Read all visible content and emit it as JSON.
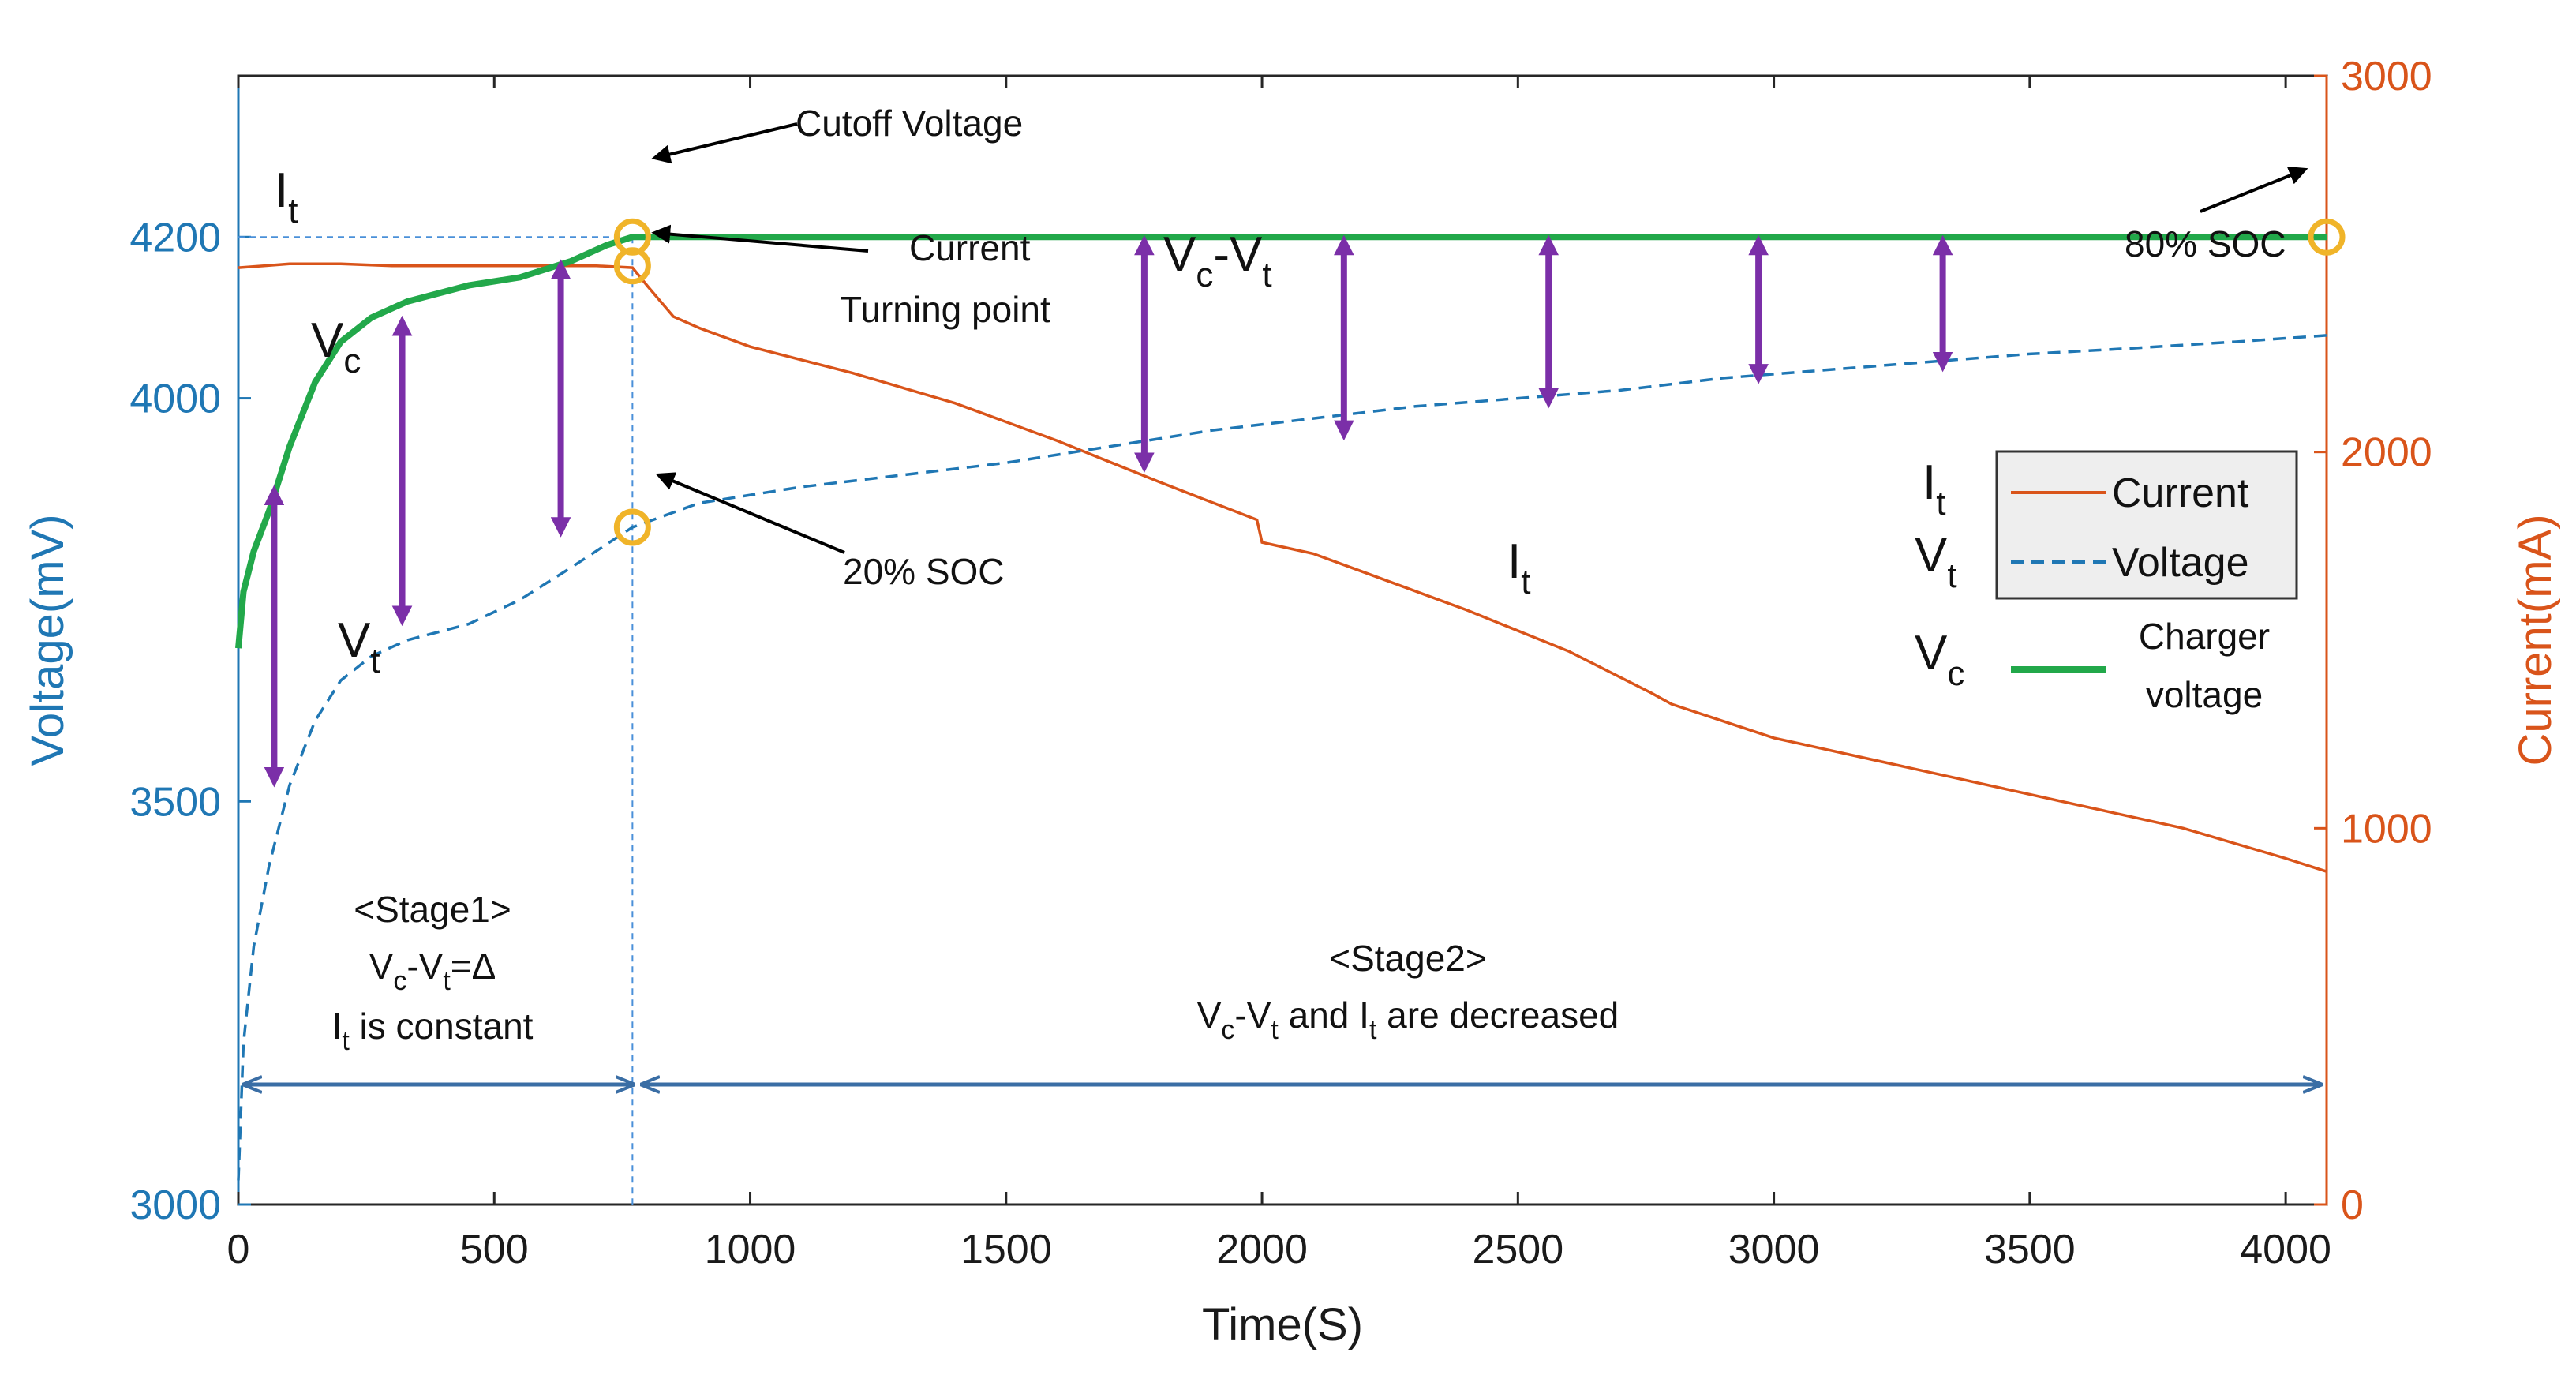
{
  "chart_data": {
    "type": "line",
    "title": "",
    "xlabel": "Time(S)",
    "ylabel_left": "Voltage(mV)",
    "ylabel_right": "Current(mA)",
    "xlim": [
      0,
      4080
    ],
    "ylim_left": [
      3000,
      4400
    ],
    "ylim_right": [
      0,
      3000
    ],
    "xticks": [
      0,
      500,
      1000,
      1500,
      2000,
      2500,
      3000,
      3500,
      4000
    ],
    "xtick_labels": [
      "0",
      "500",
      "1000",
      "1500",
      "2000",
      "2500",
      "3000",
      "3500",
      "4000"
    ],
    "yticks_left": [
      3000,
      3500,
      4000,
      4200
    ],
    "ytick_labels_left": [
      "3000",
      "3500",
      "4000",
      "4200"
    ],
    "yticks_right": [
      0,
      1000,
      2000,
      3000
    ],
    "ytick_labels_right": [
      "0",
      "1000",
      "2000",
      "3000"
    ],
    "colors": {
      "current": "#d9541a",
      "voltage": "#1f77b4",
      "charger": "#22a84a",
      "arrow": "#7b2fa8",
      "marker": "#f0b429",
      "stage_arrow": "#3a6ea5"
    },
    "series": [
      {
        "name": "Current",
        "axis": "right",
        "style": "solid",
        "x": [
          0,
          50,
          100,
          200,
          300,
          400,
          500,
          600,
          700,
          770,
          800,
          850,
          900,
          1000,
          1200,
          1400,
          1600,
          1800,
          1990,
          2000,
          2100,
          2200,
          2400,
          2600,
          2760,
          2800,
          3000,
          3200,
          3400,
          3600,
          3800,
          4000,
          4080
        ],
        "values": [
          2490,
          2495,
          2500,
          2500,
          2495,
          2495,
          2495,
          2495,
          2495,
          2490,
          2440,
          2360,
          2330,
          2280,
          2210,
          2130,
          2030,
          1920,
          1820,
          1760,
          1730,
          1680,
          1580,
          1470,
          1360,
          1330,
          1240,
          1180,
          1120,
          1060,
          1000,
          920,
          885
        ]
      },
      {
        "name": "Voltage",
        "axis": "left",
        "style": "dashed",
        "x": [
          0,
          10,
          30,
          60,
          100,
          150,
          200,
          260,
          330,
          450,
          550,
          650,
          770,
          900,
          1100,
          1300,
          1500,
          1700,
          1900,
          2100,
          2300,
          2500,
          2700,
          2900,
          3100,
          3300,
          3500,
          3700,
          3900,
          4080
        ],
        "values": [
          3030,
          3200,
          3320,
          3420,
          3520,
          3600,
          3650,
          3680,
          3700,
          3720,
          3750,
          3790,
          3840,
          3870,
          3890,
          3905,
          3920,
          3940,
          3960,
          3975,
          3990,
          4000,
          4010,
          4025,
          4035,
          4045,
          4055,
          4062,
          4070,
          4078
        ]
      },
      {
        "name": "Charger voltage",
        "axis": "left",
        "style": "solid",
        "x": [
          0,
          10,
          30,
          60,
          100,
          150,
          200,
          260,
          330,
          450,
          550,
          650,
          720,
          770,
          4080
        ],
        "values": [
          3690,
          3760,
          3810,
          3860,
          3940,
          4020,
          4070,
          4100,
          4120,
          4140,
          4150,
          4170,
          4190,
          4200,
          4200
        ]
      }
    ],
    "vc_vt_arrows": [
      {
        "x": 70,
        "top": 3880,
        "bottom": 3530
      },
      {
        "x": 320,
        "top": 4090,
        "bottom": 3730
      },
      {
        "x": 630,
        "top": 4160,
        "bottom": 3840
      },
      {
        "x": 1770,
        "top": 4190,
        "bottom": 3920
      },
      {
        "x": 2160,
        "top": 4190,
        "bottom": 3960
      },
      {
        "x": 2560,
        "top": 4190,
        "bottom": 4000
      },
      {
        "x": 2970,
        "top": 4190,
        "bottom": 4030
      },
      {
        "x": 3330,
        "top": 4190,
        "bottom": 4045
      }
    ],
    "markers": [
      {
        "x": 770,
        "axis": "left",
        "y": 4200
      },
      {
        "x": 770,
        "axis": "right",
        "y": 2495
      },
      {
        "x": 770,
        "axis": "left",
        "y": 3840
      },
      {
        "x": 4080,
        "axis": "left",
        "y": 4200
      }
    ],
    "cutoff_time": 770,
    "cutoff_voltage": 4200,
    "annotations": {
      "cutoff": "Cutoff Voltage",
      "current_line1": "Current",
      "current_line2": "Turning point",
      "soc20": "20% SOC",
      "soc80": "80% SOC",
      "stage1_title": "<Stage1>",
      "stage1_line2_v": "V",
      "stage1_line2_c": "c",
      "stage1_line2_dash": "-V",
      "stage1_line2_t": "t",
      "stage1_line2_end": "=Δ",
      "stage1_line3_i": "I",
      "stage1_line3_t": "t",
      "stage1_line3_rest": " is constant",
      "stage2_title": "<Stage2>",
      "stage2_v": "V",
      "stage2_c": "c",
      "stage2_dash": "-V",
      "stage2_t": "t",
      "stage2_and": " and I",
      "stage2_t2": "t",
      "stage2_rest": " are decreased",
      "lbl_I": "I",
      "lbl_V": "V",
      "sub_t": "t",
      "sub_c": "c",
      "vcvt_v": "V",
      "vcvt_c": "c",
      "vcvt_dash": "-V",
      "vcvt_t": "t"
    },
    "legend": {
      "position": "right-middle",
      "entries": [
        {
          "symbol_main": "I",
          "symbol_sub": "t",
          "label": "Current"
        },
        {
          "symbol_main": "V",
          "symbol_sub": "t",
          "label": "Voltage"
        },
        {
          "symbol_main": "V",
          "symbol_sub": "c",
          "label_line1": "Charger",
          "label_line2": "voltage"
        }
      ]
    }
  }
}
